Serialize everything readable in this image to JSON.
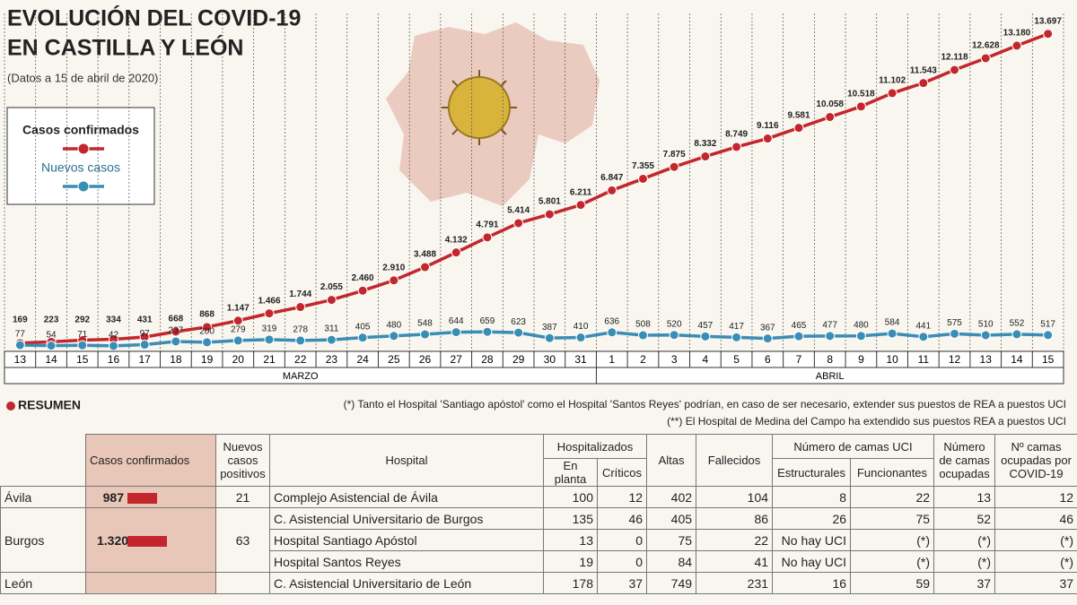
{
  "chart_data": {
    "type": "line",
    "title": [
      "EVOLUCIÓN DEL COVID-19",
      "EN CASTILLA Y LEÓN"
    ],
    "subtitle": "(Datos a 15 de abril de 2020)",
    "categories": [
      "13",
      "14",
      "15",
      "16",
      "17",
      "18",
      "19",
      "20",
      "21",
      "22",
      "23",
      "24",
      "25",
      "26",
      "27",
      "28",
      "29",
      "30",
      "31",
      "1",
      "2",
      "3",
      "4",
      "5",
      "6",
      "7",
      "8",
      "9",
      "10",
      "11",
      "12",
      "13",
      "14",
      "15"
    ],
    "month_labels": [
      "MARZO",
      "ABRIL"
    ],
    "ylim": [
      0,
      14000
    ],
    "series": [
      {
        "name": "Casos confirmados",
        "color": "#c3262d",
        "values": [
          169,
          223,
          292,
          334,
          431,
          668,
          868,
          1147,
          1466,
          1744,
          2055,
          2460,
          2910,
          3488,
          4132,
          4791,
          5414,
          5801,
          6211,
          6847,
          7355,
          7875,
          8332,
          8749,
          9116,
          9581,
          10058,
          10518,
          11102,
          11543,
          12118,
          12628,
          13180,
          13697
        ],
        "value_labels": [
          "169",
          "223",
          "292",
          "334",
          "431",
          "668",
          "868",
          "1.147",
          "1.466",
          "1.744",
          "2.055",
          "2.460",
          "2.910",
          "3.488",
          "4.132",
          "4.791",
          "5.414",
          "5.801",
          "6.211",
          "6.847",
          "7.355",
          "7.875",
          "8.332",
          "8.749",
          "9.116",
          "9.581",
          "10.058",
          "10.518",
          "11.102",
          "11.543",
          "12.118",
          "12.628",
          "13.180",
          "13.697"
        ]
      },
      {
        "name": "Nuevos casos",
        "color": "#3a8db5",
        "values": [
          77,
          54,
          71,
          42,
          97,
          237,
          200,
          279,
          319,
          278,
          311,
          405,
          480,
          548,
          644,
          659,
          623,
          387,
          410,
          636,
          508,
          520,
          457,
          417,
          367,
          465,
          477,
          480,
          584,
          441,
          575,
          510,
          552,
          517
        ]
      }
    ]
  },
  "table": {
    "title": "RESUMEN",
    "notes": [
      "(*) Tanto el Hospital 'Santiago apóstol' como el Hospital 'Santos Reyes' podrían, en caso de ser necesario, extender sus puestos de REA a puestos UCI",
      "(**) El Hospital de Medina del Campo ha extendido sus puestos REA a puestos UCI"
    ],
    "headers": [
      "Casos confirmados",
      "Nuevos casos positivos",
      "Hospital",
      "Hospitalizados",
      "Altas",
      "Fallecidos",
      "Número de camas UCI",
      "Número de camas ocupadas",
      "Nº camas ocupadas por COVID-19"
    ],
    "subheaders": [
      "En planta",
      "Críticos",
      "Estructurales",
      "Funcionantes"
    ],
    "rows": [
      {
        "province": "Ávila",
        "cases": 987,
        "new_cases": 21,
        "hospitals": [
          [
            "Complejo Asistencial de Ávila",
            "100",
            "12",
            "402",
            "104",
            "8",
            "22",
            "13",
            "12"
          ]
        ]
      },
      {
        "province": "Burgos",
        "cases": {
          "value": 1320,
          "label": "1.320"
        },
        "new_cases": 63,
        "hospitals": [
          [
            "C. Asistencial Universitario de Burgos",
            "135",
            "46",
            "405",
            "86",
            "26",
            "75",
            "52",
            "46"
          ],
          [
            "Hospital Santiago Apóstol",
            "13",
            "0",
            "75",
            "22",
            "No hay UCI",
            "(*)",
            "(*)",
            "(*)"
          ],
          [
            "Hospital Santos Reyes",
            "19",
            "0",
            "84",
            "41",
            "No hay UCI",
            "(*)",
            "(*)",
            "(*)"
          ]
        ]
      },
      {
        "province": "León",
        "hospitals": [
          [
            "C. Asistencial Universitario de León",
            "178",
            "37",
            "749",
            "231",
            "16",
            "59",
            "37",
            "37"
          ]
        ]
      }
    ]
  }
}
